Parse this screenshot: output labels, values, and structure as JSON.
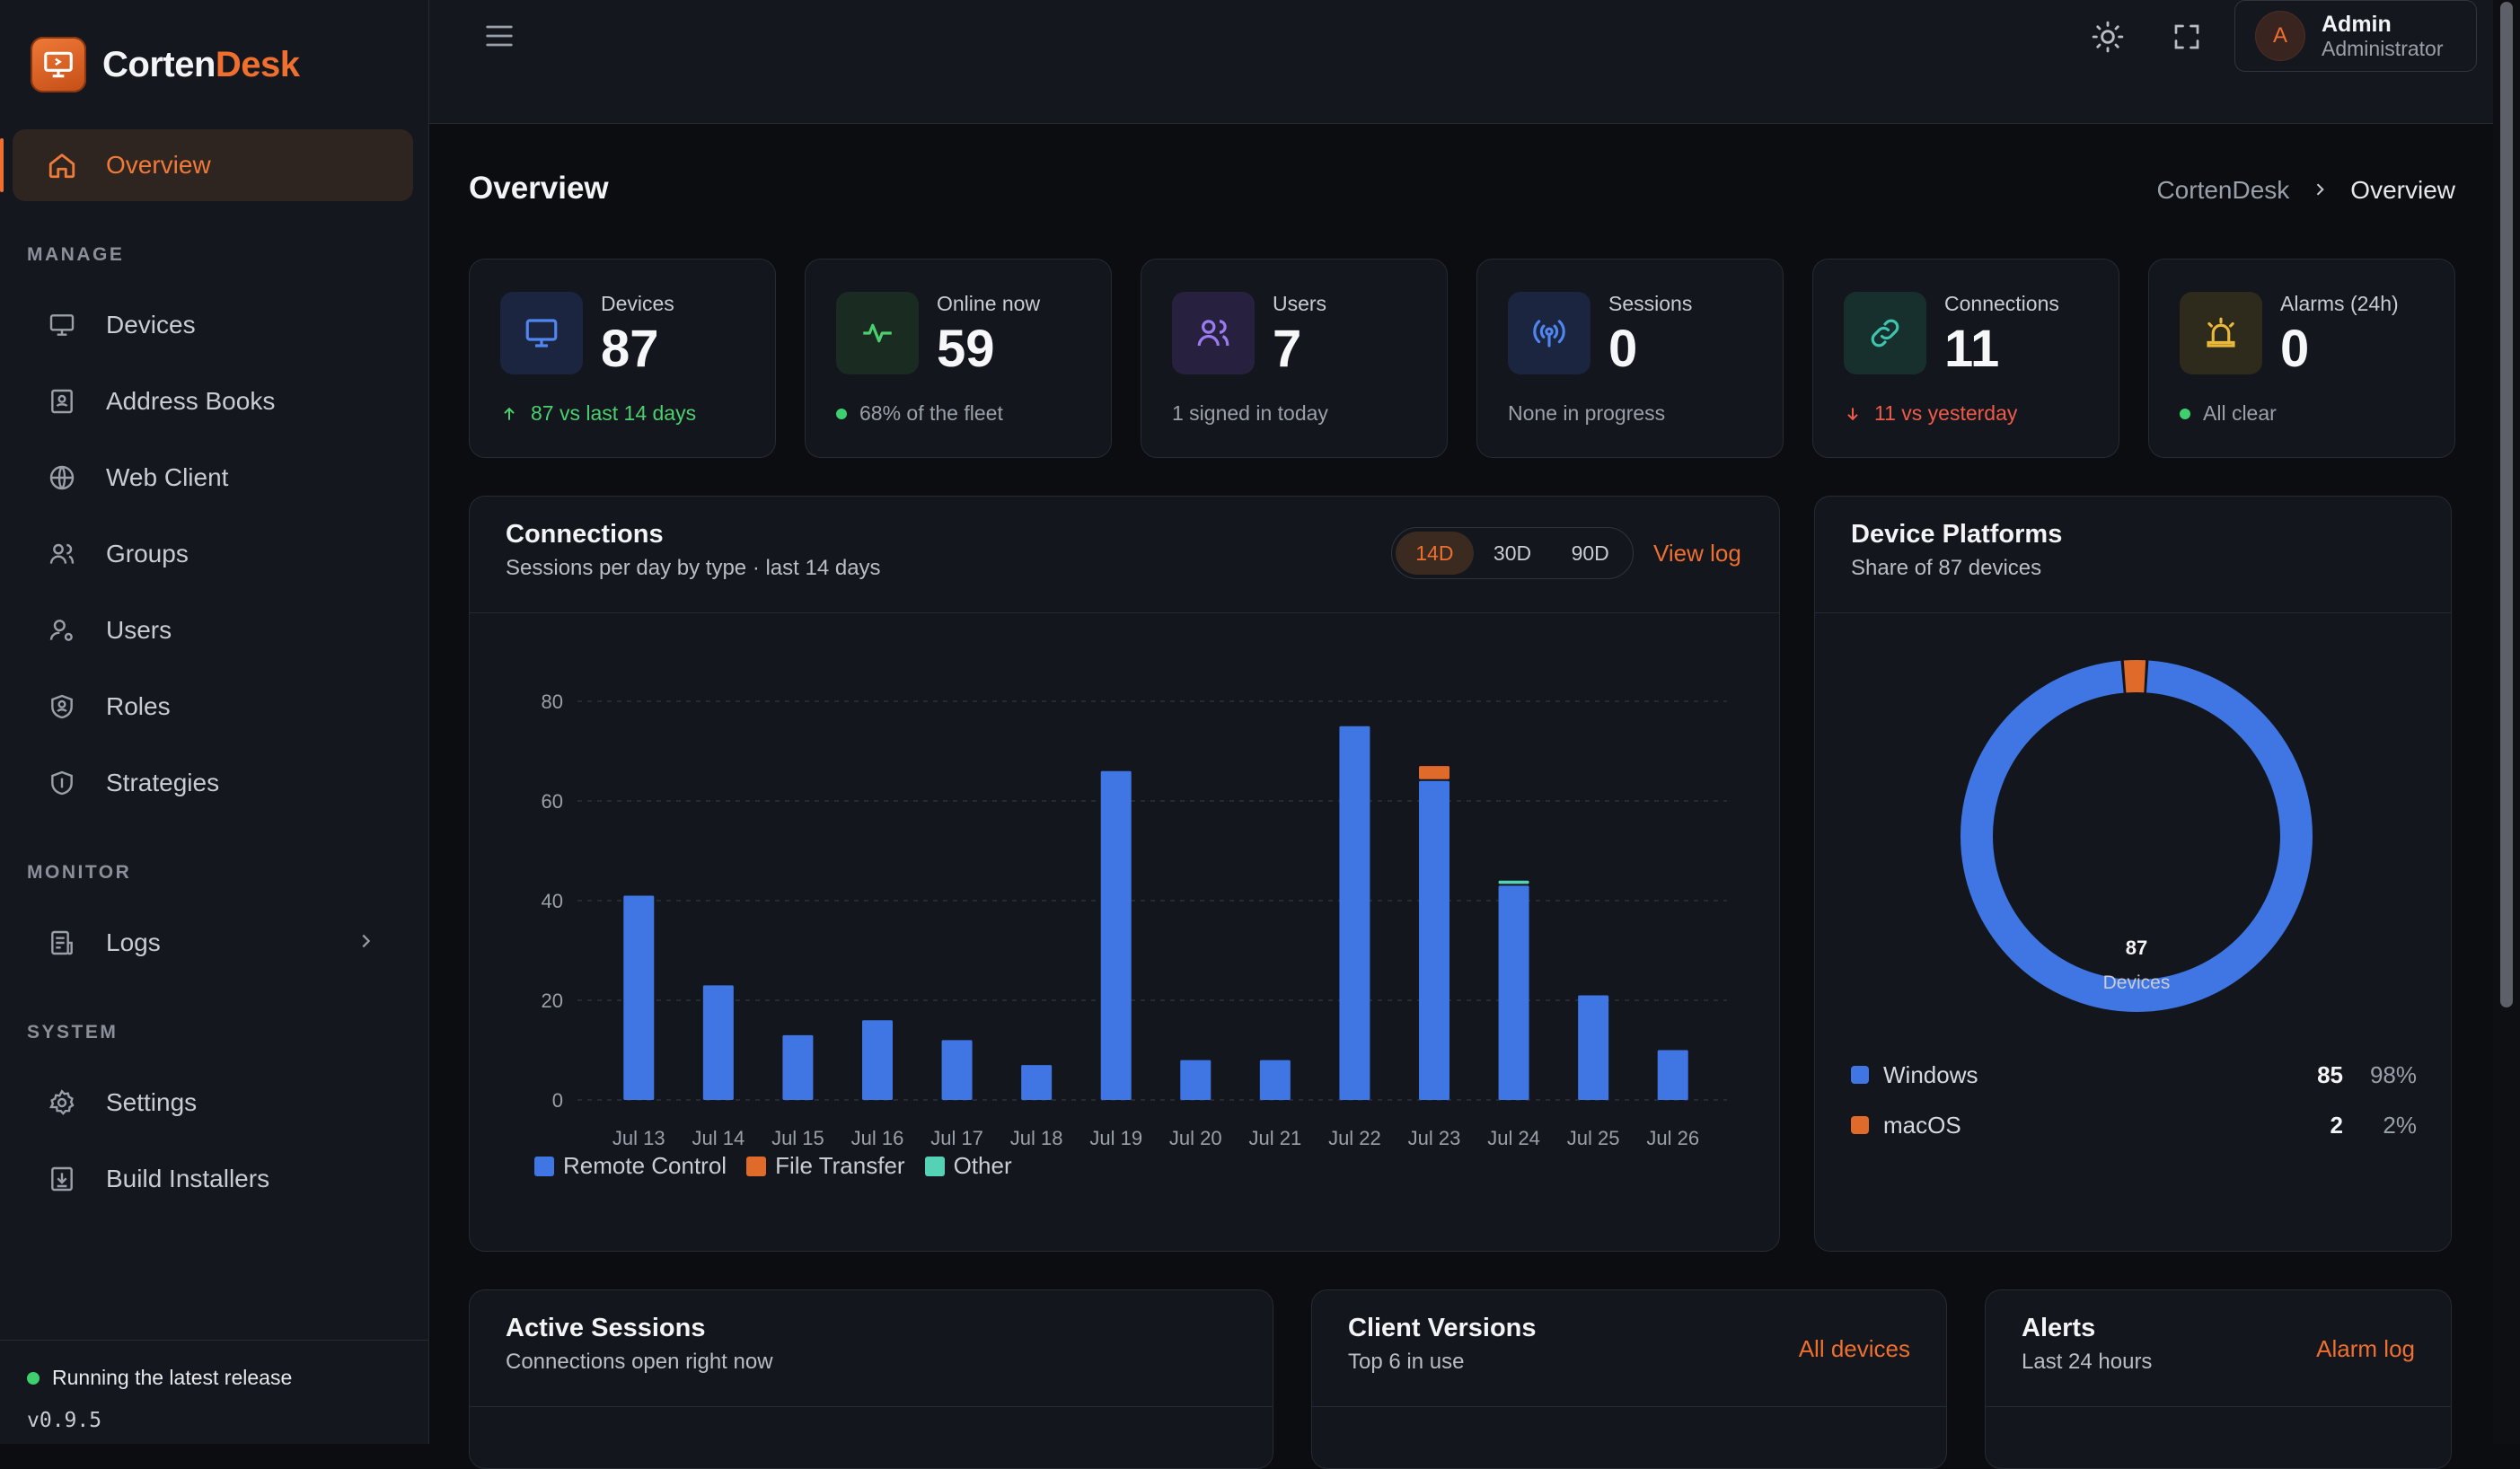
{
  "app": {
    "brand_a": "Corten",
    "brand_b": "Desk"
  },
  "sidebar": {
    "overview": "Overview",
    "sections": {
      "manage": "MANAGE",
      "monitor": "MONITOR",
      "system": "SYSTEM"
    },
    "manage_items": [
      "Devices",
      "Address Books",
      "Web Client",
      "Groups",
      "Users",
      "Roles",
      "Strategies"
    ],
    "monitor_items": [
      "Logs"
    ],
    "system_items": [
      "Settings",
      "Build Installers"
    ],
    "footer_status": "Running the latest release",
    "version": "v0.9.5"
  },
  "topbar": {
    "user_initial": "A",
    "user_name": "Admin",
    "user_role": "Administrator"
  },
  "page": {
    "title": "Overview",
    "breadcrumb": [
      "CortenDesk",
      "Overview"
    ]
  },
  "stats": [
    {
      "label": "Devices",
      "value": "87",
      "foot": "87 vs last 14 days",
      "trend": "up"
    },
    {
      "label": "Online now",
      "value": "59",
      "foot": "68% of the fleet",
      "trend": "dot"
    },
    {
      "label": "Users",
      "value": "7",
      "foot": "1 signed in today",
      "trend": "none"
    },
    {
      "label": "Sessions",
      "value": "0",
      "foot": "None in progress",
      "trend": "none"
    },
    {
      "label": "Connections",
      "value": "11",
      "foot": "11 vs yesterday",
      "trend": "down"
    },
    {
      "label": "Alarms (24h)",
      "value": "0",
      "foot": "All clear",
      "trend": "dot"
    }
  ],
  "connections_card": {
    "title": "Connections",
    "subtitle": "Sessions per day by type · last 14 days",
    "ranges": [
      "14D",
      "30D",
      "90D"
    ],
    "active_range": "14D",
    "link": "View log"
  },
  "chart_data": {
    "type": "bar",
    "stacked": true,
    "categories": [
      "Jul 13",
      "Jul 14",
      "Jul 15",
      "Jul 16",
      "Jul 17",
      "Jul 18",
      "Jul 19",
      "Jul 20",
      "Jul 21",
      "Jul 22",
      "Jul 23",
      "Jul 24",
      "Jul 25",
      "Jul 26"
    ],
    "series": [
      {
        "name": "Remote Control",
        "color": "#3f76e4",
        "values": [
          41,
          23,
          13,
          16,
          12,
          7,
          66,
          8,
          8,
          75,
          64,
          43,
          21,
          10
        ]
      },
      {
        "name": "File Transfer",
        "color": "#e06a2a",
        "values": [
          0,
          0,
          0,
          0,
          0,
          0,
          0,
          0,
          0,
          0,
          3,
          0,
          0,
          0
        ]
      },
      {
        "name": "Other",
        "color": "#55d1b6",
        "values": [
          0,
          0,
          0,
          0,
          0,
          0,
          0,
          0,
          0,
          0,
          0,
          1,
          0,
          0
        ]
      }
    ],
    "yticks": [
      0,
      20,
      40,
      60,
      80
    ],
    "ylim": [
      0,
      80
    ],
    "grid": true,
    "legend": "bottom-left"
  },
  "platforms_card": {
    "title": "Device Platforms",
    "subtitle": "Share of 87 devices",
    "center_value": "87",
    "center_label": "Devices",
    "items": [
      {
        "name": "Windows",
        "count": "85",
        "pct": "98%",
        "color": "#3f76e4",
        "value": 85
      },
      {
        "name": "macOS",
        "count": "2",
        "pct": "2%",
        "color": "#e06a2a",
        "value": 2
      }
    ]
  },
  "bottom_cards": [
    {
      "title": "Active Sessions",
      "subtitle": "Connections open right now",
      "link": ""
    },
    {
      "title": "Client Versions",
      "subtitle": "Top 6 in use",
      "link": "All devices"
    },
    {
      "title": "Alerts",
      "subtitle": "Last 24 hours",
      "link": "Alarm log"
    }
  ],
  "colors": {
    "accent": "#ef6f2e",
    "up": "#4ccf6e",
    "down": "#ef5b4a",
    "blue": "#3f76e4"
  },
  "icons": {
    "theme": "sun-icon",
    "fullscreen": "expand-icon",
    "menu": "menu-icon"
  }
}
